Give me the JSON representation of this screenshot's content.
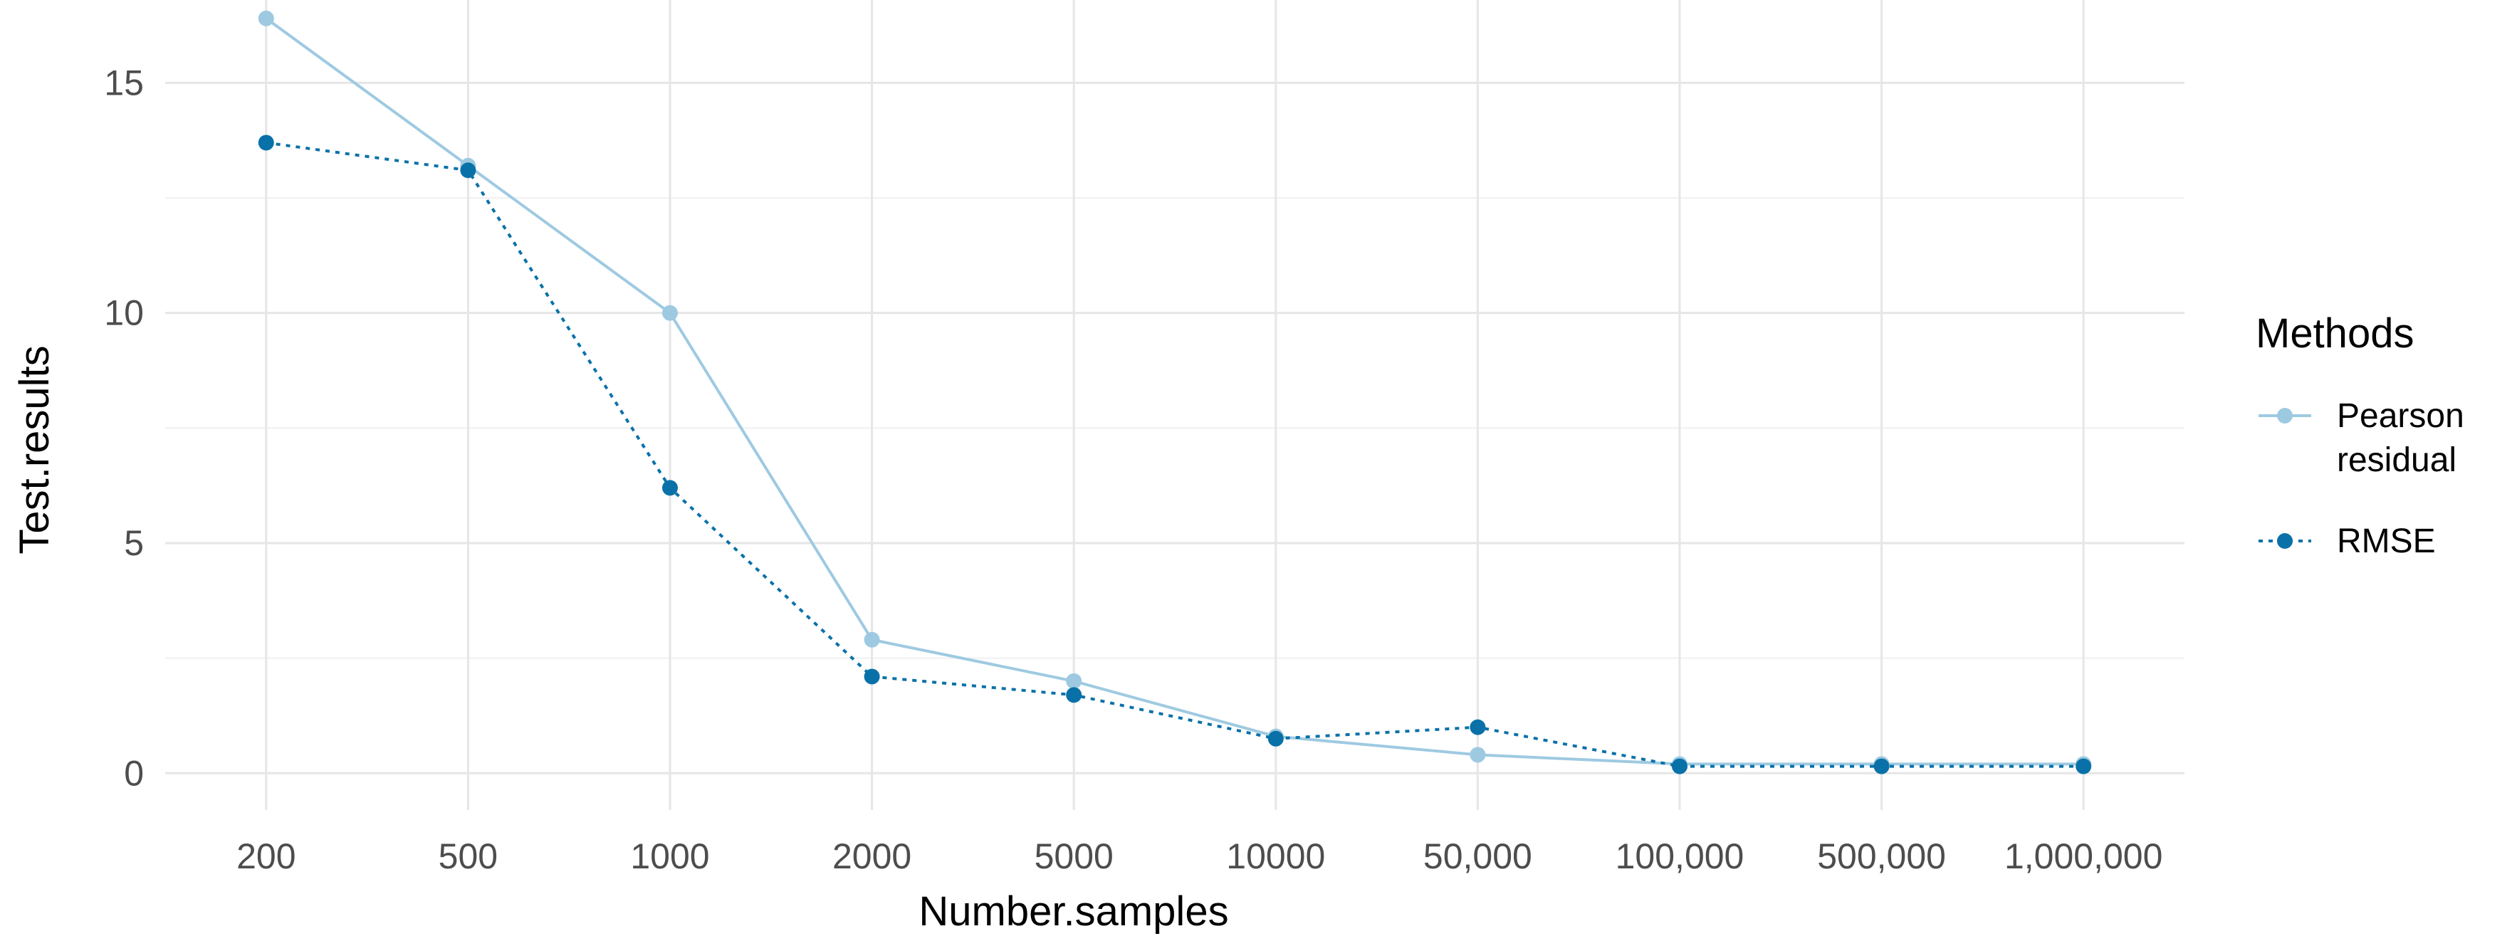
{
  "chart_data": {
    "type": "line",
    "xlabel": "Number.samples",
    "ylabel": "Test.results",
    "categories": [
      "200",
      "500",
      "1000",
      "2000",
      "5000",
      "10000",
      "50,000",
      "100,000",
      "500,000",
      "1,000,000"
    ],
    "yticks": [
      0,
      5,
      10,
      15
    ],
    "ylim": [
      -0.8,
      16.8
    ],
    "grid": true,
    "legend": {
      "title": "Methods",
      "position": "right"
    },
    "series": [
      {
        "name_lines": [
          "Pearson",
          "residual"
        ],
        "line_style": "solid",
        "color": "#9ecae1",
        "values": [
          16.4,
          13.2,
          10.0,
          2.9,
          2.0,
          0.8,
          0.4,
          0.2,
          0.2,
          0.2
        ]
      },
      {
        "name": "RMSE",
        "line_style": "dotted",
        "color": "#0a71a8",
        "values": [
          13.7,
          13.1,
          6.2,
          2.1,
          1.7,
          0.75,
          1.0,
          0.15,
          0.15,
          0.15
        ]
      }
    ]
  }
}
